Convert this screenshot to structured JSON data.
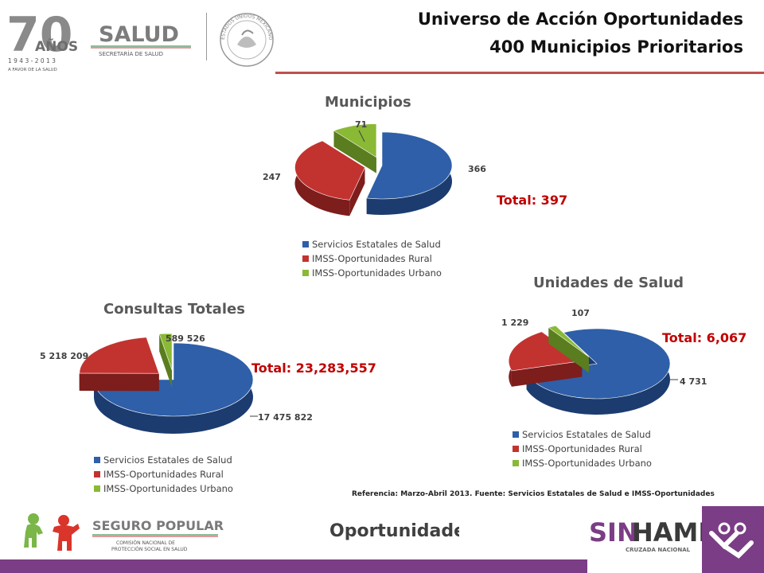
{
  "header": {
    "title_line1": "Universo de Acción Oportunidades",
    "title_line2": "400 Municipios Prioritarios",
    "rule_color": "#c0504d"
  },
  "logos": {
    "anniversary": {
      "number": "70",
      "word": "AÑOS",
      "years": "1 9 4 3  -  2 0 1 3",
      "slogan": "A FAVOR DE LA SALUD"
    },
    "salud": {
      "name": "SALUD",
      "sub": "SECRETARÍA DE SALUD"
    },
    "seal": {
      "text": "ESTADOS UNIDOS MEXICANOS"
    },
    "seguro_popular": {
      "name": "SEGURO POPULAR",
      "sub1": "COMISIÓN NACIONAL DE",
      "sub2": "PROTECCIÓN SOCIAL EN SALUD"
    },
    "oportunidades": {
      "name": "Oportunidades"
    },
    "sin_hambre": {
      "part1": "SIN",
      "part2": "HAMBRE",
      "sub": "CRUZADA NACIONAL"
    }
  },
  "colors": {
    "servicios": "#2e5fa8",
    "rural": "#c23330",
    "urbano": "#8ab935",
    "bottom_bar": "#7b3d85"
  },
  "legend_labels": [
    "Servicios Estatales de Salud",
    "IMSS-Oportunidades Rural",
    "IMSS-Oportunidades Urbano"
  ],
  "chart_data": [
    {
      "type": "pie",
      "title": "Municipios",
      "categories": [
        "Servicios Estatales de Salud",
        "IMSS-Oportunidades Rural",
        "IMSS-Oportunidades Urbano"
      ],
      "values": [
        366,
        247,
        71
      ],
      "data_labels": [
        "366",
        "247",
        "71"
      ],
      "total_label": "Total:  397",
      "legend_position": "bottom"
    },
    {
      "type": "pie",
      "title": "Consultas Totales",
      "categories": [
        "Servicios Estatales de Salud",
        "IMSS-Oportunidades Rural",
        "IMSS-Oportunidades Urbano"
      ],
      "values": [
        17475822,
        5218209,
        589526
      ],
      "data_labels": [
        "17 475 822",
        "5 218 209",
        "589 526"
      ],
      "total_label": "Total:  23,283,557",
      "legend_position": "bottom"
    },
    {
      "type": "pie",
      "title": "Unidades de Salud",
      "categories": [
        "Servicios Estatales de Salud",
        "IMSS-Oportunidades Rural",
        "IMSS-Oportunidades Urbano"
      ],
      "values": [
        4731,
        1229,
        107
      ],
      "data_labels": [
        "4 731",
        "1 229",
        "107"
      ],
      "total_label": "Total:  6,067",
      "legend_position": "bottom"
    }
  ],
  "footer": {
    "reference": "Referencia: Marzo-Abril 2013. Fuente: Servicios Estatales de Salud e IMSS-Oportunidades"
  }
}
